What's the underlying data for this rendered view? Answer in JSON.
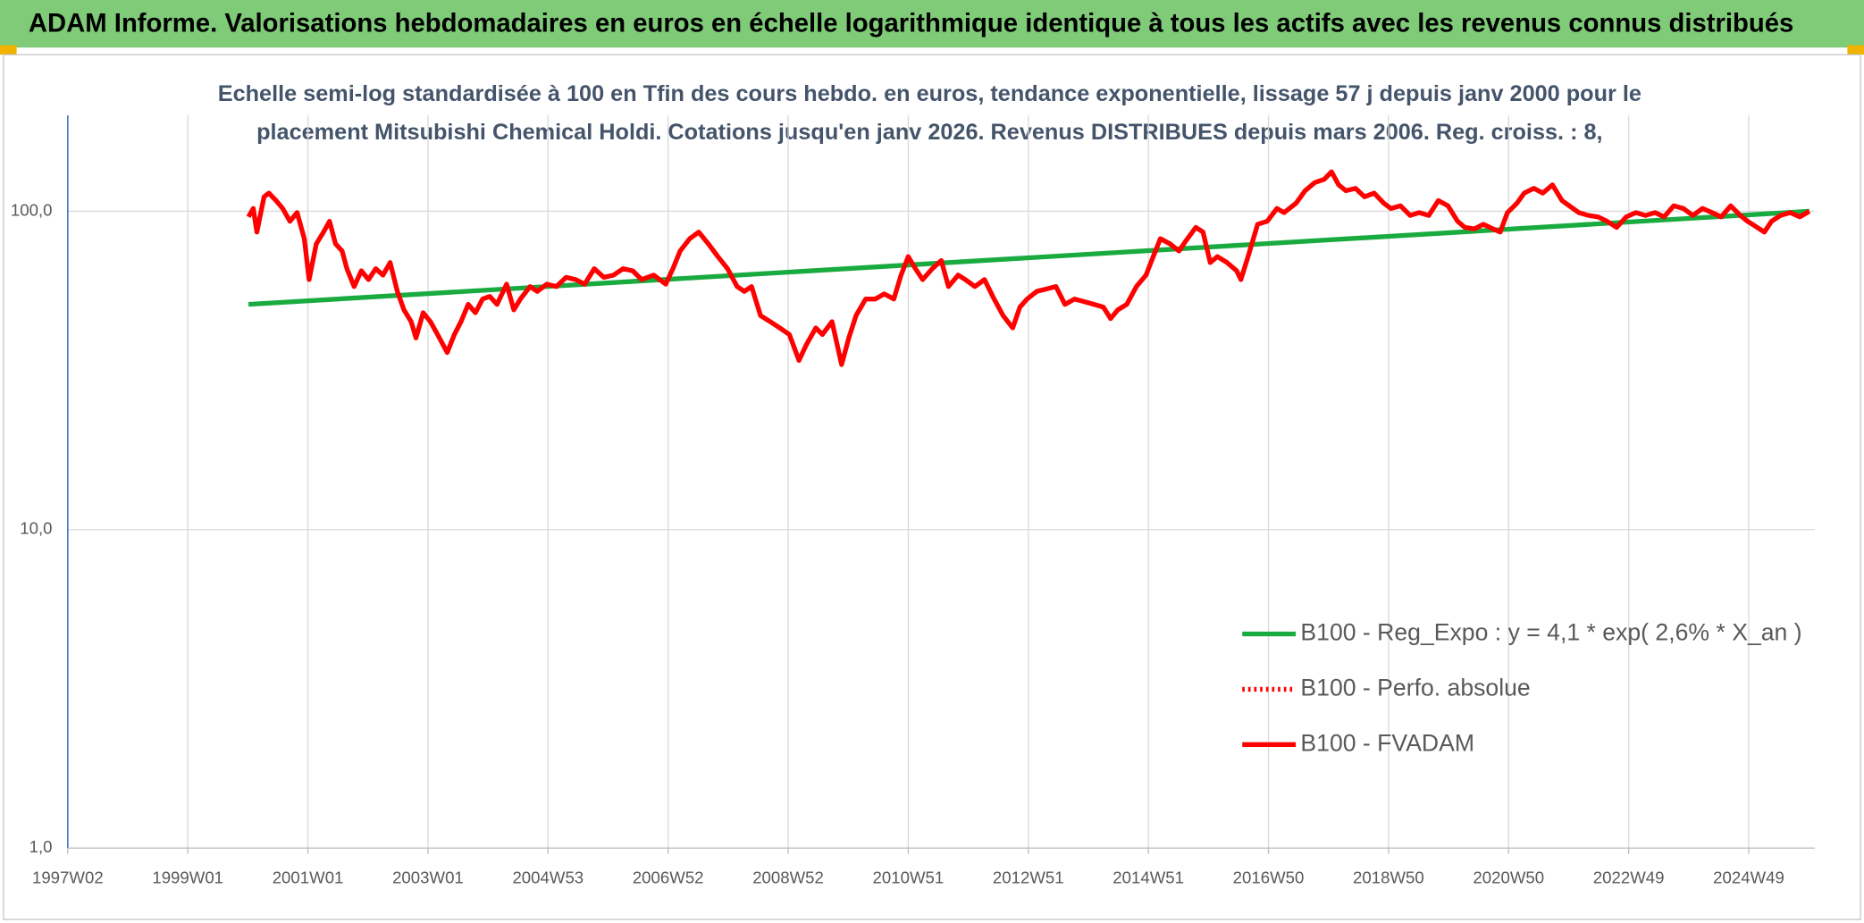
{
  "chart_data": {
    "type": "line",
    "title": "ADAM Informe. Valorisations hebdomadaires en euros en échelle logarithmique identique à tous les actifs avec les revenus connus distribués",
    "subtitle": [
      "Echelle semi-log standardisée à 100 en Tfin des cours hebdo. en euros, tendance exponentielle, lissage 57 j depuis janv 2000 pour le",
      "placement Mitsubishi Chemical Holdi. Cotations jusqu'en janv 2026. Revenus DISTRIBUES depuis mars 2006. Reg. croiss. : 8,"
    ],
    "log_y": true,
    "grid": true,
    "legend": "lower-right",
    "xlim": [
      1997,
      2026.1
    ],
    "xticks": [
      {
        "value": 1997,
        "label": "1997W02"
      },
      {
        "value": 1999,
        "label": "1999W01"
      },
      {
        "value": 2001,
        "label": "2001W01"
      },
      {
        "value": 2003,
        "label": "2003W01"
      },
      {
        "value": 2005,
        "label": "2004W53"
      },
      {
        "value": 2007,
        "label": "2006W52"
      },
      {
        "value": 2009,
        "label": "2008W52"
      },
      {
        "value": 2011,
        "label": "2010W51"
      },
      {
        "value": 2013,
        "label": "2012W51"
      },
      {
        "value": 2015,
        "label": "2014W51"
      },
      {
        "value": 2017,
        "label": "2016W50"
      },
      {
        "value": 2019,
        "label": "2018W50"
      },
      {
        "value": 2021,
        "label": "2020W50"
      },
      {
        "value": 2023,
        "label": "2022W49"
      },
      {
        "value": 2025,
        "label": "2024W49"
      }
    ],
    "ylim": [
      1,
      200
    ],
    "yticks": [
      {
        "value": 1,
        "label": "1,0"
      },
      {
        "value": 10,
        "label": "10,0"
      },
      {
        "value": 100,
        "label": "100,0"
      }
    ],
    "series": [
      {
        "name": "B100 - Reg_Expo : y = 4,1 * exp( 2,6% *  X_an )",
        "color": "#1aab40",
        "style": "solid",
        "x": [
          2000.01,
          2026.01
        ],
        "values": [
          51,
          100
        ]
      },
      {
        "name": "B100 - Perfo. absolue",
        "color": "#ff0000",
        "style": "dotted"
      },
      {
        "name": "B100 - FVADAM",
        "color": "#ff0000",
        "style": "solid",
        "x": [
          2000.01,
          2000.09,
          2000.15,
          2000.27,
          2000.35,
          2000.47,
          2000.58,
          2000.7,
          2000.82,
          2000.94,
          2001.02,
          2001.14,
          2001.26,
          2001.36,
          2001.46,
          2001.57,
          2001.65,
          2001.77,
          2001.89,
          2002.01,
          2002.13,
          2002.25,
          2002.37,
          2002.49,
          2002.6,
          2002.72,
          2002.8,
          2002.92,
          2003.04,
          2003.16,
          2003.32,
          2003.44,
          2003.55,
          2003.67,
          2003.79,
          2003.91,
          2004.03,
          2004.15,
          2004.31,
          2004.43,
          2004.54,
          2004.7,
          2004.82,
          2004.98,
          2005.14,
          2005.3,
          2005.46,
          2005.61,
          2005.77,
          2005.93,
          2006.09,
          2006.25,
          2006.41,
          2006.56,
          2006.76,
          2006.96,
          2007.08,
          2007.2,
          2007.36,
          2007.51,
          2007.67,
          2007.83,
          2007.99,
          2008.15,
          2008.27,
          2008.39,
          2008.54,
          2008.7,
          2008.86,
          2009.02,
          2009.18,
          2009.3,
          2009.46,
          2009.57,
          2009.73,
          2009.89,
          2010.01,
          2010.13,
          2010.29,
          2010.45,
          2010.6,
          2010.76,
          2010.88,
          2011.0,
          2011.12,
          2011.24,
          2011.4,
          2011.55,
          2011.67,
          2011.83,
          2011.95,
          2012.11,
          2012.27,
          2012.43,
          2012.58,
          2012.74,
          2012.86,
          2012.98,
          2013.14,
          2013.3,
          2013.46,
          2013.61,
          2013.77,
          2013.93,
          2014.09,
          2014.25,
          2014.37,
          2014.49,
          2014.64,
          2014.8,
          2014.96,
          2015.08,
          2015.2,
          2015.36,
          2015.51,
          2015.63,
          2015.79,
          2015.91,
          2016.03,
          2016.15,
          2016.31,
          2016.47,
          2016.54,
          2016.66,
          2016.82,
          2016.98,
          2017.14,
          2017.26,
          2017.46,
          2017.61,
          2017.77,
          2017.93,
          2018.05,
          2018.17,
          2018.29,
          2018.45,
          2018.6,
          2018.76,
          2018.92,
          2019.04,
          2019.2,
          2019.36,
          2019.51,
          2019.67,
          2019.83,
          2019.99,
          2020.15,
          2020.27,
          2020.43,
          2020.58,
          2020.74,
          2020.86,
          2020.98,
          2021.14,
          2021.26,
          2021.42,
          2021.57,
          2021.73,
          2021.89,
          2022.01,
          2022.17,
          2022.33,
          2022.49,
          2022.64,
          2022.8,
          2022.96,
          2023.12,
          2023.28,
          2023.44,
          2023.59,
          2023.75,
          2023.91,
          2024.07,
          2024.23,
          2024.39,
          2024.54,
          2024.7,
          2024.86,
          2024.98,
          2025.14,
          2025.26,
          2025.38,
          2025.53,
          2025.69,
          2025.85,
          2026.01
        ],
        "values": [
          96,
          102,
          86,
          111,
          114,
          108,
          102,
          93,
          99,
          82,
          61,
          79,
          86,
          93,
          79,
          75,
          66,
          58,
          65,
          61,
          66,
          63,
          69,
          56,
          49,
          45,
          40,
          48,
          45,
          41,
          36,
          41,
          45,
          51,
          48,
          53,
          54,
          51,
          59,
          49,
          53,
          58,
          56,
          59,
          58,
          62,
          61,
          59,
          66,
          62,
          63,
          66,
          65,
          61,
          63,
          59,
          66,
          75,
          82,
          86,
          79,
          72,
          66,
          58,
          56,
          58,
          47,
          45,
          43,
          41,
          34,
          38,
          43,
          41,
          45,
          33,
          40,
          47,
          53,
          53,
          55,
          53,
          63,
          72,
          66,
          61,
          66,
          70,
          58,
          63,
          61,
          58,
          61,
          53,
          47,
          43,
          50,
          53,
          56,
          57,
          58,
          51,
          53,
          52,
          51,
          50,
          46,
          49,
          51,
          58,
          63,
          72,
          82,
          79,
          75,
          81,
          89,
          86,
          69,
          72,
          69,
          65,
          61,
          72,
          91,
          93,
          102,
          99,
          106,
          116,
          123,
          126,
          133,
          121,
          116,
          118,
          111,
          114,
          106,
          102,
          104,
          97,
          99,
          97,
          108,
          104,
          93,
          89,
          88,
          91,
          88,
          86,
          99,
          106,
          114,
          118,
          114,
          121,
          108,
          104,
          99,
          97,
          96,
          93,
          89,
          96,
          99,
          97,
          99,
          96,
          104,
          102,
          97,
          102,
          99,
          96,
          104,
          97,
          93,
          89,
          86,
          93,
          97,
          99,
          96,
          100
        ]
      }
    ]
  }
}
